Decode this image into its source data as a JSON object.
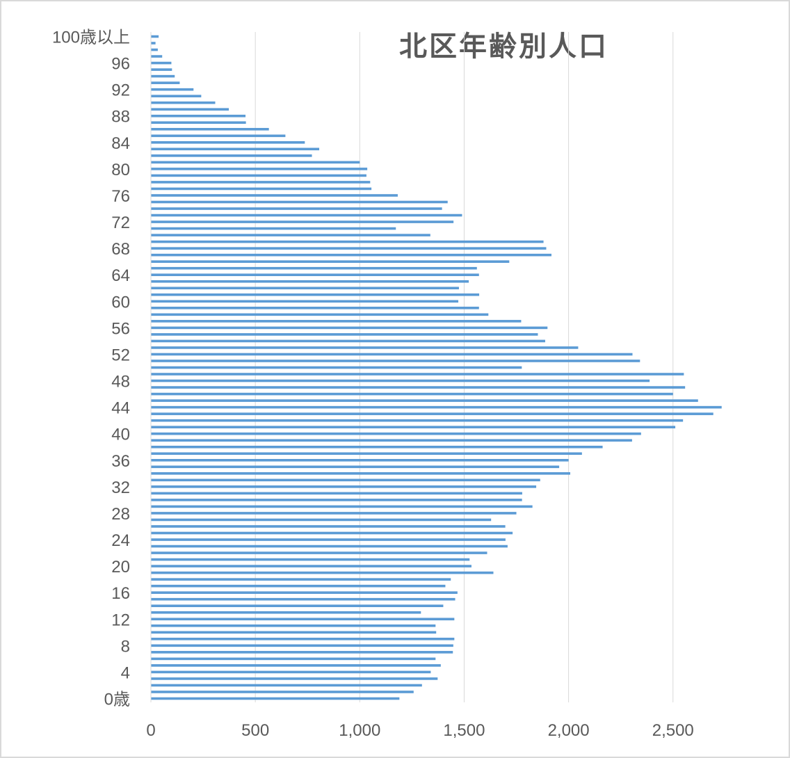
{
  "chart_data": {
    "type": "bar",
    "orientation": "horizontal",
    "title": "北区年齢別人口",
    "xlabel": "",
    "ylabel": "",
    "xlim": [
      0,
      2750
    ],
    "x_ticks": [
      0,
      500,
      1000,
      1500,
      2000,
      2500
    ],
    "x_tick_labels": [
      "0",
      "500",
      "1,000",
      "1,500",
      "2,000",
      "2,500"
    ],
    "y_tick_labels": [
      "0歳",
      "4",
      "8",
      "12",
      "16",
      "20",
      "24",
      "28",
      "32",
      "36",
      "40",
      "44",
      "48",
      "52",
      "56",
      "60",
      "64",
      "68",
      "72",
      "76",
      "80",
      "84",
      "88",
      "92",
      "96",
      "100歳以上"
    ],
    "categories": [
      "0歳",
      "1",
      "2",
      "3",
      "4",
      "5",
      "6",
      "7",
      "8",
      "9",
      "10",
      "11",
      "12",
      "13",
      "14",
      "15",
      "16",
      "17",
      "18",
      "19",
      "20",
      "21",
      "22",
      "23",
      "24",
      "25",
      "26",
      "27",
      "28",
      "29",
      "30",
      "31",
      "32",
      "33",
      "34",
      "35",
      "36",
      "37",
      "38",
      "39",
      "40",
      "41",
      "42",
      "43",
      "44",
      "45",
      "46",
      "47",
      "48",
      "49",
      "50",
      "51",
      "52",
      "53",
      "54",
      "55",
      "56",
      "57",
      "58",
      "59",
      "60",
      "61",
      "62",
      "63",
      "64",
      "65",
      "66",
      "67",
      "68",
      "69",
      "70",
      "71",
      "72",
      "73",
      "74",
      "75",
      "76",
      "77",
      "78",
      "79",
      "80",
      "81",
      "82",
      "83",
      "84",
      "85",
      "86",
      "87",
      "88",
      "89",
      "90",
      "91",
      "92",
      "93",
      "94",
      "95",
      "96",
      "97",
      "98",
      "99",
      "100歳以上"
    ],
    "values": [
      1190,
      1258,
      1298,
      1373,
      1340,
      1388,
      1363,
      1446,
      1448,
      1453,
      1366,
      1363,
      1453,
      1293,
      1400,
      1457,
      1468,
      1410,
      1436,
      1640,
      1535,
      1526,
      1610,
      1708,
      1698,
      1732,
      1697,
      1629,
      1750,
      1827,
      1777,
      1778,
      1845,
      1864,
      2008,
      1955,
      2000,
      2064,
      2163,
      2304,
      2347,
      2511,
      2548,
      2693,
      2733,
      2620,
      2500,
      2558,
      2388,
      2552,
      1776,
      2342,
      2306,
      2046,
      1888,
      1853,
      1899,
      1773,
      1616,
      1571,
      1472,
      1572,
      1475,
      1522,
      1571,
      1561,
      1716,
      1918,
      1893,
      1880,
      1338,
      1173,
      1449,
      1490,
      1394,
      1421,
      1182,
      1056,
      1050,
      1032,
      1036,
      1000,
      771,
      806,
      737,
      644,
      565,
      455,
      453,
      373,
      308,
      241,
      204,
      138,
      114,
      101,
      98,
      54,
      33,
      22,
      37
    ],
    "grid": "vertical",
    "legend": "none",
    "colors": {
      "bar": "#5b9bd5",
      "grid": "#d9d9d9",
      "text": "#595959"
    }
  }
}
